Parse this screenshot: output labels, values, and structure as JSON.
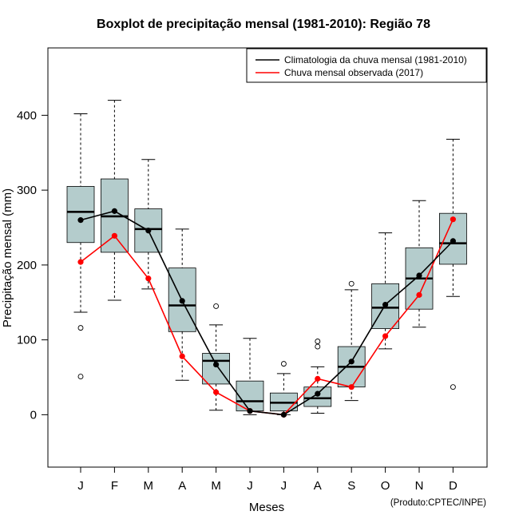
{
  "chart_data": {
    "type": "boxplot",
    "title": "Boxplot de precipitação mensal (1981-2010): Região 78",
    "xlabel": "Meses",
    "ylabel": "Precipitação mensal (mm)",
    "credit": "(Produto:CPTEC/INPE)",
    "ylim": [
      -70,
      490
    ],
    "yticks": [
      0,
      100,
      200,
      300,
      400
    ],
    "categories": [
      "J",
      "F",
      "M",
      "A",
      "M",
      "J",
      "J",
      "A",
      "S",
      "O",
      "N",
      "D"
    ],
    "box_color": "#b4cccc",
    "boxes": [
      {
        "whisker_low": 137,
        "q1": 230,
        "median": 271,
        "q3": 305,
        "whisker_high": 402,
        "outliers": [
          116,
          51
        ]
      },
      {
        "whisker_low": 153,
        "q1": 217,
        "median": 265,
        "q3": 315,
        "whisker_high": 420,
        "outliers": []
      },
      {
        "whisker_low": 168,
        "q1": 217,
        "median": 248,
        "q3": 275,
        "whisker_high": 341,
        "outliers": []
      },
      {
        "whisker_low": 46,
        "q1": 111,
        "median": 146,
        "q3": 196,
        "whisker_high": 248,
        "outliers": []
      },
      {
        "whisker_low": 6,
        "q1": 41,
        "median": 72,
        "q3": 82,
        "whisker_high": 120,
        "outliers": [
          145
        ]
      },
      {
        "whisker_low": 0,
        "q1": 5,
        "median": 18,
        "q3": 45,
        "whisker_high": 102,
        "outliers": []
      },
      {
        "whisker_low": 0,
        "q1": 5,
        "median": 16,
        "q3": 29,
        "whisker_high": 55,
        "outliers": [
          68
        ]
      },
      {
        "whisker_low": 2,
        "q1": 11,
        "median": 22,
        "q3": 37,
        "whisker_high": 64,
        "outliers": [
          98,
          91
        ]
      },
      {
        "whisker_low": 19,
        "q1": 37,
        "median": 64,
        "q3": 91,
        "whisker_high": 167,
        "outliers": [
          175
        ]
      },
      {
        "whisker_low": 88,
        "q1": 115,
        "median": 143,
        "q3": 175,
        "whisker_high": 243,
        "outliers": []
      },
      {
        "whisker_low": 117,
        "q1": 141,
        "median": 182,
        "q3": 223,
        "whisker_high": 286,
        "outliers": []
      },
      {
        "whisker_low": 158,
        "q1": 201,
        "median": 229,
        "q3": 269,
        "whisker_high": 368,
        "outliers": [
          37
        ]
      }
    ],
    "series": [
      {
        "name": "Climatologia da chuva mensal (1981-2010)",
        "color": "#000000",
        "values": [
          260,
          272,
          246,
          152,
          67,
          5,
          0,
          28,
          71,
          147,
          186,
          232
        ]
      },
      {
        "name": "Chuva mensal observada (2017)",
        "color": "#ff0000",
        "values": [
          204,
          239,
          182,
          78,
          30,
          5,
          0,
          48,
          37,
          105,
          160,
          261
        ]
      }
    ],
    "legend": "top-right"
  }
}
